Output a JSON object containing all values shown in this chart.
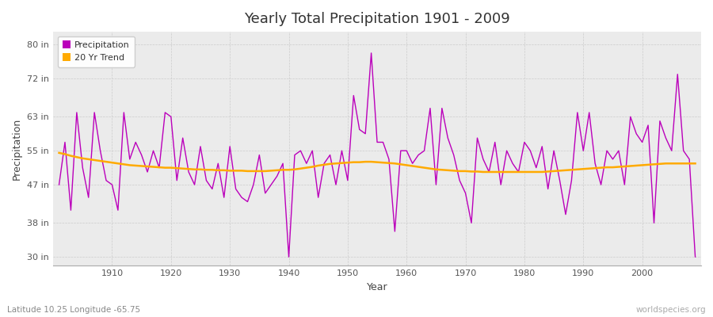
{
  "title": "Yearly Total Precipitation 1901 - 2009",
  "xlabel": "Year",
  "ylabel": "Precipitation",
  "subtitle": "Latitude 10.25 Longitude -65.75",
  "watermark": "worldspecies.org",
  "fig_bg_color": "#ffffff",
  "plot_bg_color": "#ebebeb",
  "precip_color": "#bb00bb",
  "trend_color": "#ffaa00",
  "ylim": [
    28,
    83
  ],
  "yticks": [
    30,
    38,
    47,
    55,
    63,
    72,
    80
  ],
  "ytick_labels": [
    "30 in",
    "38 in",
    "47 in",
    "55 in",
    "63 in",
    "72 in",
    "80 in"
  ],
  "xlim": [
    1900,
    2010
  ],
  "xticks": [
    1910,
    1920,
    1930,
    1940,
    1950,
    1960,
    1970,
    1980,
    1990,
    2000
  ],
  "years": [
    1901,
    1902,
    1903,
    1904,
    1905,
    1906,
    1907,
    1908,
    1909,
    1910,
    1911,
    1912,
    1913,
    1914,
    1915,
    1916,
    1917,
    1918,
    1919,
    1920,
    1921,
    1922,
    1923,
    1924,
    1925,
    1926,
    1927,
    1928,
    1929,
    1930,
    1931,
    1932,
    1933,
    1934,
    1935,
    1936,
    1937,
    1938,
    1939,
    1940,
    1941,
    1942,
    1943,
    1944,
    1945,
    1946,
    1947,
    1948,
    1949,
    1950,
    1951,
    1952,
    1953,
    1954,
    1955,
    1956,
    1957,
    1958,
    1959,
    1960,
    1961,
    1962,
    1963,
    1964,
    1965,
    1966,
    1967,
    1968,
    1969,
    1970,
    1971,
    1972,
    1973,
    1974,
    1975,
    1976,
    1977,
    1978,
    1979,
    1980,
    1981,
    1982,
    1983,
    1984,
    1985,
    1986,
    1987,
    1988,
    1989,
    1990,
    1991,
    1992,
    1993,
    1994,
    1995,
    1996,
    1997,
    1998,
    1999,
    2000,
    2001,
    2002,
    2003,
    2004,
    2005,
    2006,
    2007,
    2008,
    2009
  ],
  "precip": [
    47,
    57,
    41,
    64,
    51,
    44,
    64,
    55,
    48,
    47,
    41,
    64,
    53,
    57,
    54,
    50,
    55,
    51,
    64,
    63,
    48,
    58,
    50,
    47,
    56,
    48,
    46,
    52,
    44,
    56,
    46,
    44,
    43,
    47,
    54,
    45,
    47,
    49,
    52,
    30,
    54,
    55,
    52,
    55,
    44,
    52,
    54,
    47,
    55,
    48,
    68,
    60,
    59,
    78,
    57,
    57,
    53,
    36,
    55,
    55,
    52,
    54,
    55,
    65,
    47,
    65,
    58,
    54,
    48,
    45,
    38,
    58,
    53,
    50,
    57,
    47,
    55,
    52,
    50,
    57,
    55,
    51,
    56,
    46,
    55,
    48,
    40,
    48,
    64,
    55,
    64,
    52,
    47,
    55,
    53,
    55,
    47,
    63,
    59,
    57,
    61,
    38,
    62,
    58,
    55,
    73,
    55,
    53,
    30
  ],
  "trend_years": [
    1901,
    1902,
    1903,
    1904,
    1905,
    1906,
    1907,
    1908,
    1909,
    1910,
    1911,
    1912,
    1913,
    1914,
    1915,
    1916,
    1917,
    1918,
    1919,
    1920,
    1921,
    1922,
    1923,
    1924,
    1925,
    1926,
    1927,
    1928,
    1929,
    1930,
    1931,
    1932,
    1933,
    1934,
    1935,
    1936,
    1937,
    1938,
    1939,
    1940,
    1941,
    1942,
    1943,
    1944,
    1945,
    1946,
    1947,
    1948,
    1949,
    1950,
    1951,
    1952,
    1953,
    1954,
    1955,
    1956,
    1957,
    1958,
    1959,
    1960,
    1961,
    1962,
    1963,
    1964,
    1965,
    1966,
    1967,
    1968,
    1969,
    1970,
    1971,
    1972,
    1973,
    1974,
    1975,
    1976,
    1977,
    1978,
    1979,
    1980,
    1981,
    1982,
    1983,
    1984,
    1985,
    1986,
    1987,
    1988,
    1989,
    1990,
    1991,
    1992,
    1993,
    1994,
    1995,
    1996,
    1997,
    1998,
    1999,
    2000,
    2001,
    2002,
    2003,
    2004,
    2005,
    2006,
    2007,
    2008,
    2009
  ],
  "trend": [
    54.5,
    54.2,
    53.8,
    53.5,
    53.2,
    53.0,
    52.8,
    52.6,
    52.4,
    52.2,
    52.0,
    51.8,
    51.6,
    51.5,
    51.4,
    51.3,
    51.2,
    51.1,
    51.0,
    51.0,
    50.9,
    50.8,
    50.7,
    50.6,
    50.6,
    50.5,
    50.5,
    50.4,
    50.4,
    50.3,
    50.3,
    50.3,
    50.2,
    50.2,
    50.2,
    50.2,
    50.3,
    50.4,
    50.5,
    50.5,
    50.6,
    50.8,
    51.0,
    51.2,
    51.5,
    51.7,
    51.9,
    52.0,
    52.1,
    52.2,
    52.3,
    52.3,
    52.4,
    52.4,
    52.3,
    52.2,
    52.1,
    52.0,
    51.8,
    51.6,
    51.4,
    51.2,
    51.0,
    50.8,
    50.6,
    50.5,
    50.4,
    50.3,
    50.2,
    50.2,
    50.1,
    50.1,
    50.0,
    50.0,
    50.0,
    50.0,
    50.0,
    50.0,
    50.0,
    50.0,
    50.0,
    50.0,
    50.0,
    50.1,
    50.2,
    50.3,
    50.4,
    50.5,
    50.6,
    50.7,
    50.8,
    50.9,
    51.0,
    51.1,
    51.1,
    51.2,
    51.3,
    51.4,
    51.5,
    51.6,
    51.7,
    51.8,
    51.9,
    52.0,
    52.0,
    52.0,
    52.0,
    52.0,
    52.0
  ]
}
